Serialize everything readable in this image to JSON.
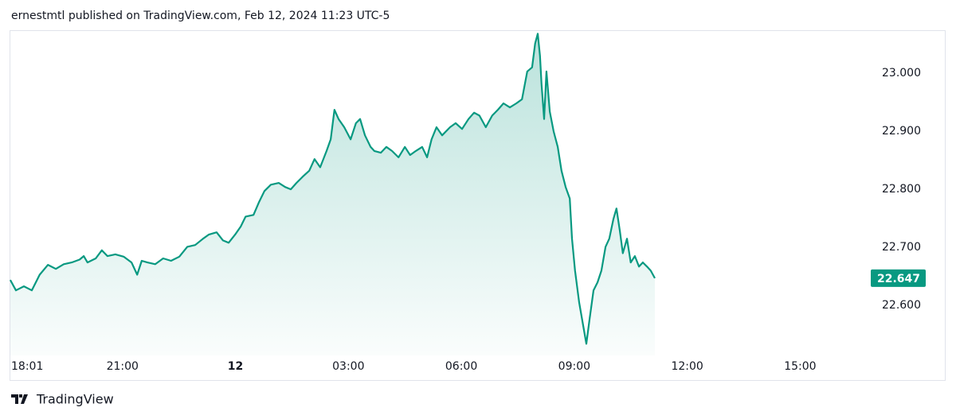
{
  "chart_data": {
    "type": "area",
    "title": "ernestmtl published on TradingView.com, Feb 12, 2024 11:23 UTC-5",
    "source": "TradingView",
    "color": "#089981",
    "x": [
      -5.98,
      -5.83,
      -5.62,
      -5.41,
      -5.2,
      -4.98,
      -4.77,
      -4.56,
      -4.35,
      -4.14,
      -4.03,
      -3.93,
      -3.71,
      -3.55,
      -3.4,
      -3.19,
      -2.97,
      -2.76,
      -2.61,
      -2.49,
      -2.34,
      -2.13,
      -1.92,
      -1.71,
      -1.49,
      -1.28,
      -1.07,
      -0.86,
      -0.71,
      -0.5,
      -0.33,
      -0.18,
      -0.01,
      0.14,
      0.27,
      0.48,
      0.62,
      0.77,
      0.94,
      1.15,
      1.32,
      1.47,
      1.62,
      1.79,
      1.96,
      2.1,
      2.25,
      2.42,
      2.53,
      2.63,
      2.74,
      2.89,
      3.06,
      3.2,
      3.31,
      3.44,
      3.59,
      3.69,
      3.86,
      4.01,
      4.16,
      4.33,
      4.5,
      4.64,
      4.79,
      4.96,
      5.09,
      5.21,
      5.34,
      5.49,
      5.7,
      5.85,
      6.02,
      6.19,
      6.34,
      6.48,
      6.65,
      6.82,
      6.97,
      7.12,
      7.29,
      7.46,
      7.61,
      7.75,
      7.88,
      7.96,
      8.03,
      8.09,
      8.13,
      8.2,
      8.26,
      8.35,
      8.45,
      8.56,
      8.66,
      8.77,
      8.88,
      8.94,
      9.02,
      9.13,
      9.24,
      9.32,
      9.41,
      9.51,
      9.62,
      9.72,
      9.83,
      9.93,
      10.04,
      10.12,
      10.21,
      10.29,
      10.4,
      10.5,
      10.61,
      10.72,
      10.82,
      10.93,
      11.03,
      11.14
    ],
    "values": [
      22.644,
      22.626,
      22.633,
      22.626,
      22.653,
      22.67,
      22.663,
      22.671,
      22.674,
      22.679,
      22.685,
      22.674,
      22.681,
      22.695,
      22.685,
      22.688,
      22.684,
      22.674,
      22.653,
      22.677,
      22.674,
      22.671,
      22.681,
      22.677,
      22.684,
      22.701,
      22.704,
      22.715,
      22.722,
      22.726,
      22.712,
      22.708,
      22.722,
      22.736,
      22.753,
      22.756,
      22.777,
      22.797,
      22.808,
      22.811,
      22.804,
      22.8,
      22.811,
      22.822,
      22.832,
      22.852,
      22.838,
      22.866,
      22.886,
      22.937,
      22.921,
      22.907,
      22.886,
      22.914,
      22.921,
      22.893,
      22.873,
      22.866,
      22.863,
      22.873,
      22.866,
      22.855,
      22.873,
      22.859,
      22.866,
      22.873,
      22.855,
      22.886,
      22.907,
      22.893,
      22.907,
      22.914,
      22.904,
      22.921,
      22.932,
      22.927,
      22.907,
      22.927,
      22.937,
      22.948,
      22.941,
      22.948,
      22.955,
      23.003,
      23.01,
      23.051,
      23.068,
      23.03,
      22.982,
      22.921,
      23.003,
      22.934,
      22.9,
      22.873,
      22.832,
      22.804,
      22.784,
      22.715,
      22.66,
      22.605,
      22.564,
      22.534,
      22.578,
      22.626,
      22.64,
      22.66,
      22.701,
      22.715,
      22.749,
      22.767,
      22.729,
      22.69,
      22.715,
      22.674,
      22.685,
      22.667,
      22.674,
      22.667,
      22.66,
      22.647
    ],
    "last_price": 22.647,
    "xlim": [
      -6,
      16.6
    ],
    "xticks": [
      {
        "value": -5.98,
        "label": "18:01"
      },
      {
        "value": -3,
        "label": "21:00"
      },
      {
        "value": 0,
        "label": "12"
      },
      {
        "value": 3,
        "label": "03:00"
      },
      {
        "value": 6,
        "label": "06:00"
      },
      {
        "value": 9,
        "label": "09:00"
      },
      {
        "value": 12,
        "label": "12:00"
      },
      {
        "value": 15,
        "label": "15:00"
      }
    ],
    "ylim": [
      22.514,
      23.074
    ],
    "yticks": [
      {
        "value": 22.6,
        "label": "22.600"
      },
      {
        "value": 22.7,
        "label": "22.700"
      },
      {
        "value": 22.8,
        "label": "22.800"
      },
      {
        "value": 22.9,
        "label": "22.900"
      },
      {
        "value": 23,
        "label": "23.000"
      }
    ]
  }
}
